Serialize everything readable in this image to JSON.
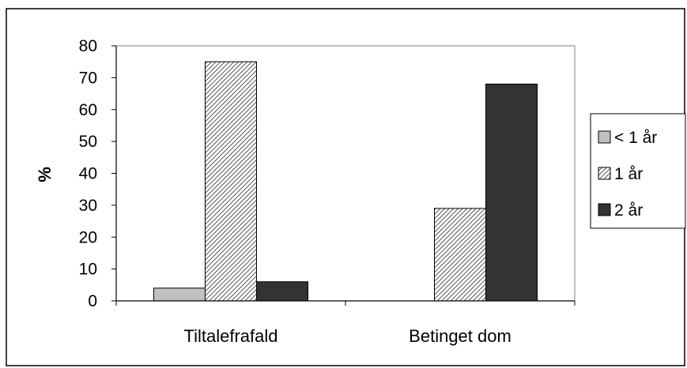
{
  "chart_data": {
    "type": "bar",
    "title": "",
    "xlabel": "",
    "ylabel": "%",
    "ylim": [
      0,
      80
    ],
    "yticks": [
      "0",
      "10",
      "20",
      "30",
      "40",
      "50",
      "60",
      "70",
      "80"
    ],
    "categories": [
      "Tiltalefrafald",
      "Betinget dom"
    ],
    "series": [
      {
        "name": "< 1 år",
        "values": [
          4,
          0
        ],
        "color": "#c0c0c0",
        "pattern": "solid"
      },
      {
        "name": "1 år",
        "values": [
          75,
          29
        ],
        "color": "#ffffff",
        "pattern": "diagonal-hatch"
      },
      {
        "name": "2 år",
        "values": [
          6,
          68
        ],
        "color": "#333333",
        "pattern": "solid"
      }
    ],
    "grid": false,
    "legend_position": "right"
  }
}
